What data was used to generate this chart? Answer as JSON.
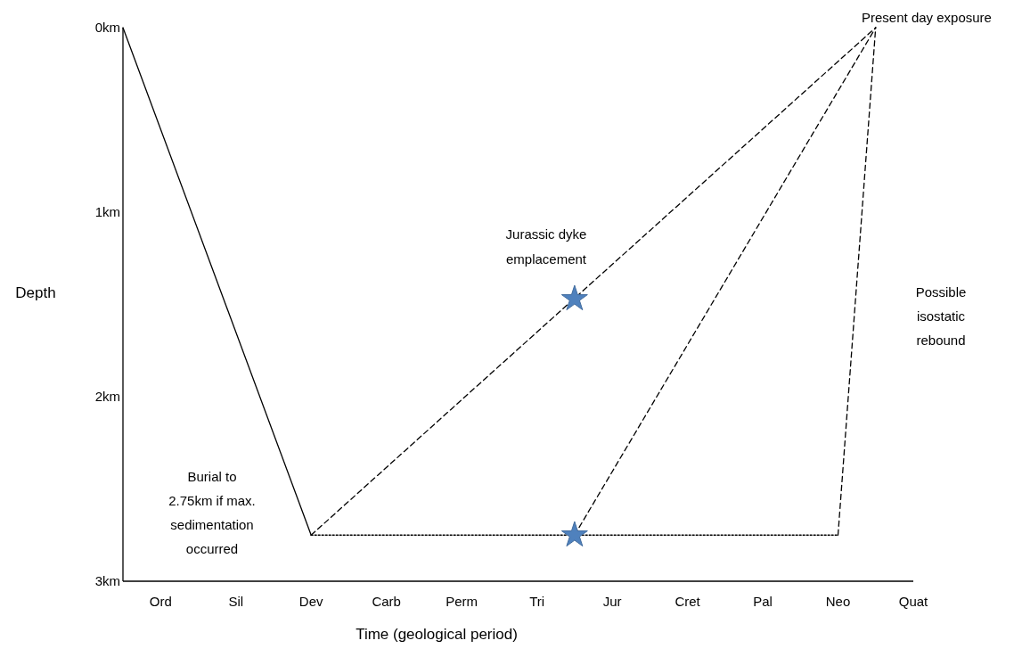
{
  "chart_data": {
    "type": "line",
    "xlabel": "Time (geological period)",
    "ylabel": "Depth",
    "categories": [
      null,
      "Ord",
      null,
      "Sil",
      null,
      "Dev",
      null,
      "Carb",
      null,
      "Perm",
      null,
      "Tri",
      null,
      "Jur",
      null,
      "Cret",
      null,
      "Pal",
      null,
      "Neo",
      null,
      "Quat"
    ],
    "ylim": [
      3,
      0
    ],
    "yticks": [
      {
        "value": 0,
        "label": "0km"
      },
      {
        "value": 1,
        "label": "1km"
      },
      {
        "value": 2,
        "label": "2km"
      },
      {
        "value": 3,
        "label": "3km"
      }
    ],
    "grid": false,
    "marker": "none",
    "series": [
      {
        "line_style": "solid",
        "color": "#000000",
        "values": [
          0,
          null,
          null,
          null,
          null,
          2.75,
          null,
          null,
          null,
          null,
          null,
          null,
          null,
          null,
          null,
          null,
          null,
          null,
          null,
          null,
          null,
          null
        ]
      },
      {
        "line_style": "dashed",
        "color": "#000000",
        "values": [
          null,
          null,
          null,
          null,
          null,
          2.75,
          null,
          null,
          null,
          null,
          null,
          null,
          null,
          null,
          null,
          null,
          null,
          null,
          null,
          null,
          0,
          null
        ]
      },
      {
        "line_style": "dotted",
        "color": "#000000",
        "values": [
          null,
          null,
          null,
          null,
          null,
          2.75,
          null,
          null,
          null,
          null,
          null,
          null,
          null,
          null,
          null,
          null,
          null,
          null,
          null,
          2.75,
          null,
          null
        ]
      },
      {
        "line_style": "dashed",
        "color": "#000000",
        "values": [
          null,
          null,
          null,
          null,
          null,
          null,
          null,
          null,
          null,
          null,
          null,
          null,
          2.75,
          null,
          null,
          null,
          null,
          null,
          null,
          null,
          0,
          null
        ]
      },
      {
        "line_style": "dashed",
        "color": "#000000",
        "values": [
          null,
          null,
          null,
          null,
          null,
          null,
          null,
          null,
          null,
          null,
          null,
          null,
          null,
          null,
          null,
          null,
          null,
          null,
          null,
          2.75,
          0,
          null
        ]
      },
      {
        "type": "scatter",
        "marker": "star",
        "color": "#4f81bd",
        "values": [
          null,
          null,
          null,
          null,
          null,
          null,
          null,
          null,
          null,
          null,
          null,
          null,
          1.47,
          null,
          null,
          null,
          null,
          null,
          null,
          null,
          null,
          null
        ]
      },
      {
        "type": "scatter",
        "marker": "star",
        "color": "#4f81bd",
        "values": [
          null,
          null,
          null,
          null,
          null,
          null,
          null,
          null,
          null,
          null,
          null,
          null,
          2.75,
          null,
          null,
          null,
          null,
          null,
          null,
          null,
          null,
          null
        ]
      }
    ],
    "annotations": [
      "Present day exposure",
      "Jurassic dyke emplacement",
      "Burial to 2.75km if max. sedimentation occurred",
      "Possible isostatic rebound"
    ]
  }
}
